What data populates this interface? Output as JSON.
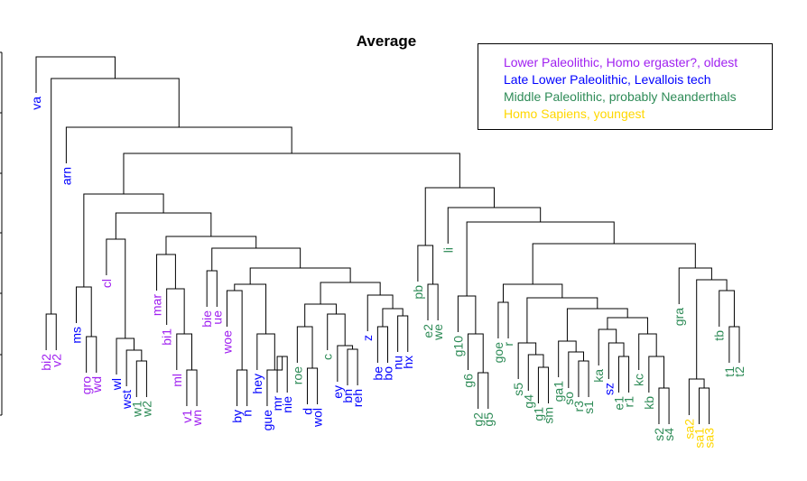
{
  "title": "Average",
  "legend": {
    "items": [
      {
        "label": "Lower Paleolithic, Homo ergaster?, oldest",
        "color": "#a020f0"
      },
      {
        "label": "Late Lower Paleolithic, Levallois tech",
        "color": "#0000ff"
      },
      {
        "label": "Middle Paleolithic, probably Neanderthals",
        "color": "#2e8b57"
      },
      {
        "label": "Homo Sapiens, youngest",
        "color": "#ffd700"
      }
    ]
  },
  "leaves": [
    {
      "label": "va",
      "color": "#0000ff"
    },
    {
      "label": "bi2",
      "color": "#a020f0"
    },
    {
      "label": "v2",
      "color": "#a020f0"
    },
    {
      "label": "arn",
      "color": "#0000ff"
    },
    {
      "label": "ms",
      "color": "#0000ff"
    },
    {
      "label": "gro",
      "color": "#a020f0"
    },
    {
      "label": "wd",
      "color": "#a020f0"
    },
    {
      "label": "cl",
      "color": "#a020f0"
    },
    {
      "label": "wl",
      "color": "#0000ff"
    },
    {
      "label": "wst",
      "color": "#0000ff"
    },
    {
      "label": "w1",
      "color": "#2e8b57"
    },
    {
      "label": "w2",
      "color": "#2e8b57"
    },
    {
      "label": "mar",
      "color": "#a020f0"
    },
    {
      "label": "bi1",
      "color": "#a020f0"
    },
    {
      "label": "ml",
      "color": "#a020f0"
    },
    {
      "label": "v1",
      "color": "#a020f0"
    },
    {
      "label": "wn",
      "color": "#a020f0"
    },
    {
      "label": "bie",
      "color": "#a020f0"
    },
    {
      "label": "ue",
      "color": "#a020f0"
    },
    {
      "label": "woe",
      "color": "#a020f0"
    },
    {
      "label": "by",
      "color": "#0000ff"
    },
    {
      "label": "n",
      "color": "#0000ff"
    },
    {
      "label": "hey",
      "color": "#0000ff"
    },
    {
      "label": "gue",
      "color": "#0000ff"
    },
    {
      "label": "mr",
      "color": "#0000ff"
    },
    {
      "label": "nie",
      "color": "#0000ff"
    },
    {
      "label": "roe",
      "color": "#2e8b57"
    },
    {
      "label": "d",
      "color": "#0000ff"
    },
    {
      "label": "wol",
      "color": "#0000ff"
    },
    {
      "label": "c",
      "color": "#2e8b57"
    },
    {
      "label": "ey",
      "color": "#0000ff"
    },
    {
      "label": "bn",
      "color": "#0000ff"
    },
    {
      "label": "reh",
      "color": "#0000ff"
    },
    {
      "label": "z",
      "color": "#0000ff"
    },
    {
      "label": "be",
      "color": "#0000ff"
    },
    {
      "label": "bo",
      "color": "#0000ff"
    },
    {
      "label": "nu",
      "color": "#0000ff"
    },
    {
      "label": "hx",
      "color": "#0000ff"
    },
    {
      "label": "pb",
      "color": "#2e8b57"
    },
    {
      "label": "e2",
      "color": "#2e8b57"
    },
    {
      "label": "we",
      "color": "#2e8b57"
    },
    {
      "label": "li",
      "color": "#2e8b57"
    },
    {
      "label": "g10",
      "color": "#2e8b57"
    },
    {
      "label": "g6",
      "color": "#2e8b57"
    },
    {
      "label": "g2",
      "color": "#2e8b57"
    },
    {
      "label": "g5",
      "color": "#2e8b57"
    },
    {
      "label": "goe",
      "color": "#2e8b57"
    },
    {
      "label": "r",
      "color": "#2e8b57"
    },
    {
      "label": "s5",
      "color": "#2e8b57"
    },
    {
      "label": "g4",
      "color": "#2e8b57"
    },
    {
      "label": "g1",
      "color": "#2e8b57"
    },
    {
      "label": "sm",
      "color": "#2e8b57"
    },
    {
      "label": "ga1",
      "color": "#2e8b57"
    },
    {
      "label": "so",
      "color": "#2e8b57"
    },
    {
      "label": "r3",
      "color": "#2e8b57"
    },
    {
      "label": "s1",
      "color": "#2e8b57"
    },
    {
      "label": "ka",
      "color": "#2e8b57"
    },
    {
      "label": "sz",
      "color": "#0000ff"
    },
    {
      "label": "e1",
      "color": "#2e8b57"
    },
    {
      "label": "r1",
      "color": "#2e8b57"
    },
    {
      "label": "kc",
      "color": "#2e8b57"
    },
    {
      "label": "kb",
      "color": "#2e8b57"
    },
    {
      "label": "s2",
      "color": "#2e8b57"
    },
    {
      "label": "s4",
      "color": "#2e8b57"
    },
    {
      "label": "gra",
      "color": "#2e8b57"
    },
    {
      "label": "sa2",
      "color": "#ffd700"
    },
    {
      "label": "sa1",
      "color": "#ffd700"
    },
    {
      "label": "sa3",
      "color": "#ffd700"
    },
    {
      "label": "tb",
      "color": "#2e8b57"
    },
    {
      "label": "t1",
      "color": "#2e8b57"
    },
    {
      "label": "t2",
      "color": "#2e8b57"
    }
  ]
}
